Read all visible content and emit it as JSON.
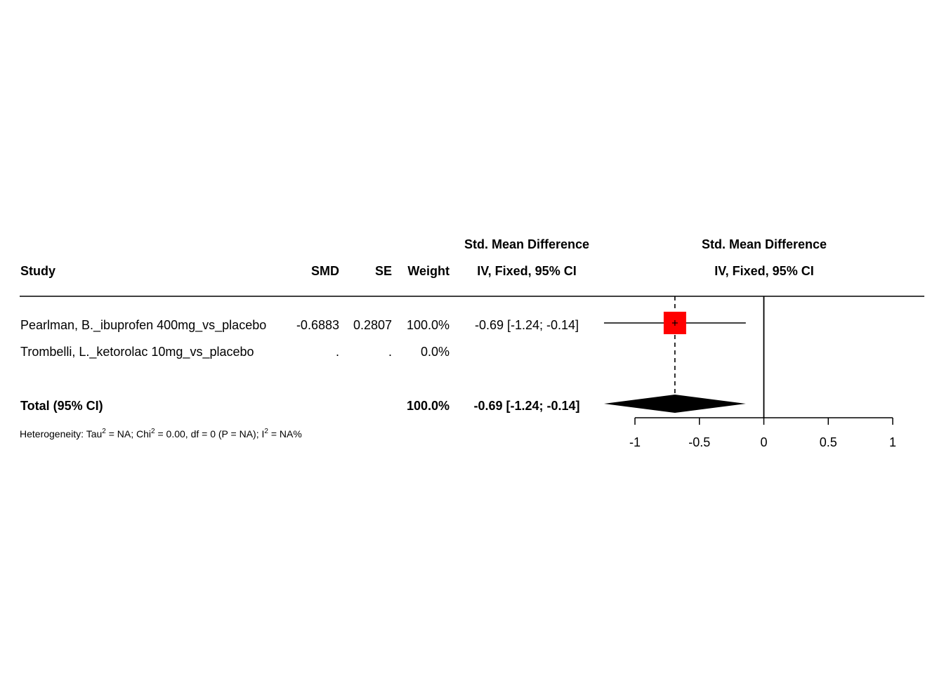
{
  "headers": {
    "study": "Study",
    "smd": "SMD",
    "se": "SE",
    "weight": "Weight",
    "effect_title": "Std. Mean Difference",
    "effect_method": "IV, Fixed, 95% CI",
    "plot_title": "Std. Mean Difference",
    "plot_method": "IV, Fixed, 95% CI"
  },
  "studies": [
    {
      "name": "Pearlman, B._ibuprofen 400mg_vs_placebo",
      "smd": "-0.6883",
      "se": "0.2807",
      "weight": "100.0%",
      "ci_text": "-0.69 [-1.24; -0.14]"
    },
    {
      "name": "Trombelli, L._ketorolac 10mg_vs_placebo",
      "smd": ".",
      "se": ".",
      "weight": "0.0%",
      "ci_text": ""
    }
  ],
  "total": {
    "label": "Total (95% CI)",
    "weight": "100.0%",
    "ci_text": "-0.69 [-1.24; -0.14]"
  },
  "heterogeneity": {
    "prefix": "Heterogeneity: Tau",
    "tau_sup": "2",
    "tau_val": " = NA; Chi",
    "chi_sup": "2",
    "chi_val": " = 0.00, df = 0 (P = NA); I",
    "i_sup": "2",
    "i_val": " = NA%"
  },
  "chart_data": {
    "type": "forest",
    "x_ticks": [
      -1,
      -0.5,
      0,
      0.5,
      1
    ],
    "x_tick_labels": [
      "-1",
      "-0.5",
      "0",
      "0.5",
      "1"
    ],
    "xlim": [
      -1,
      1
    ],
    "reference_line": 0,
    "pooled_estimate_line": -0.69,
    "studies": [
      {
        "name": "Pearlman, B._ibuprofen 400mg_vs_placebo",
        "estimate": -0.69,
        "lower": -1.24,
        "upper": -0.14,
        "weight": 100.0
      },
      {
        "name": "Trombelli, L._ketorolac 10mg_vs_placebo",
        "estimate": null,
        "lower": null,
        "upper": null,
        "weight": 0.0
      }
    ],
    "total": {
      "estimate": -0.69,
      "lower": -1.24,
      "upper": -0.14
    },
    "colors": {
      "study_box": "#ff0000",
      "diamond": "#000000",
      "lines": "#000000"
    }
  }
}
